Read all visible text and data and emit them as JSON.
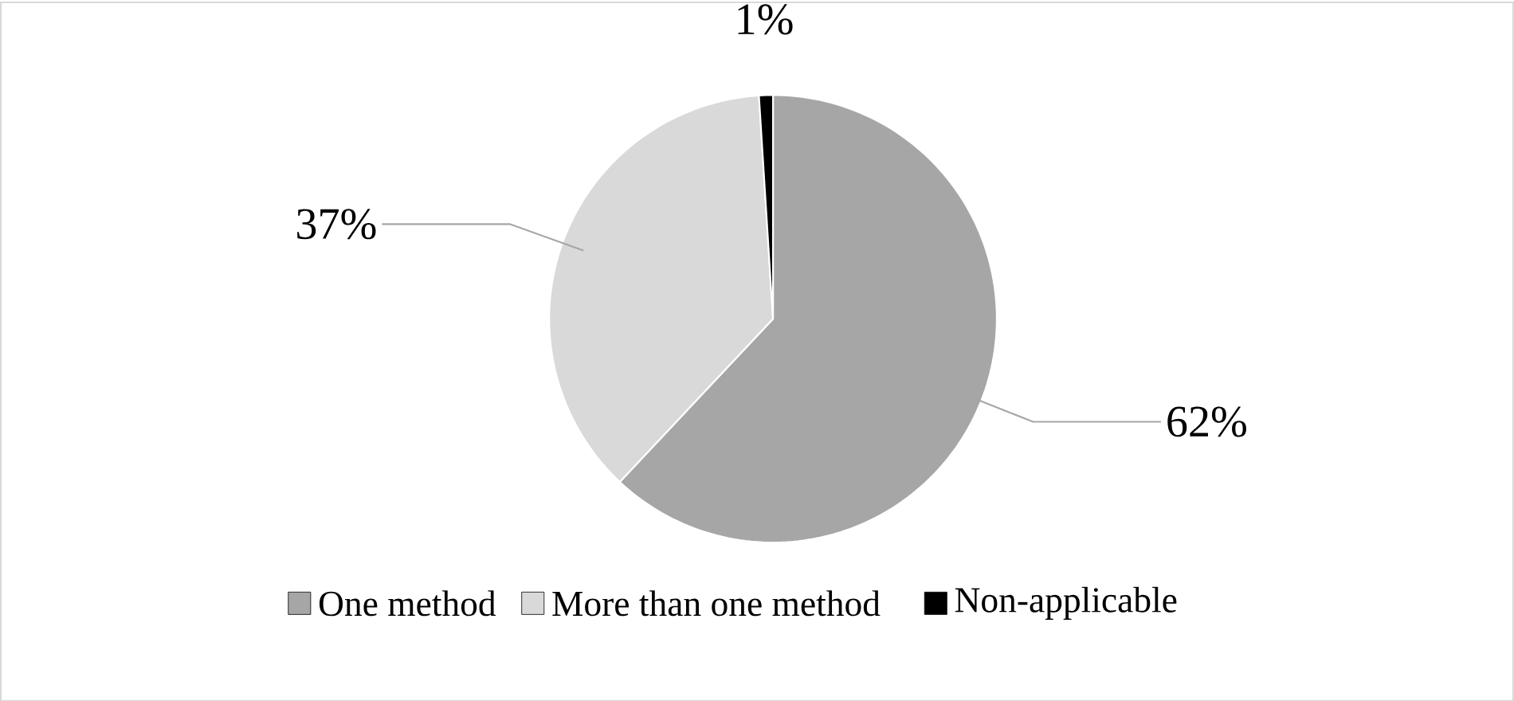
{
  "chart_data": {
    "type": "pie",
    "categories": [
      "One method",
      "More than one method",
      "Non-applicable"
    ],
    "values": [
      62,
      37,
      1
    ],
    "colors": [
      "#a6a6a6",
      "#d9d9d9",
      "#000000"
    ],
    "value_labels": [
      "62%",
      "37%",
      "1%"
    ],
    "legend": "bottom"
  }
}
